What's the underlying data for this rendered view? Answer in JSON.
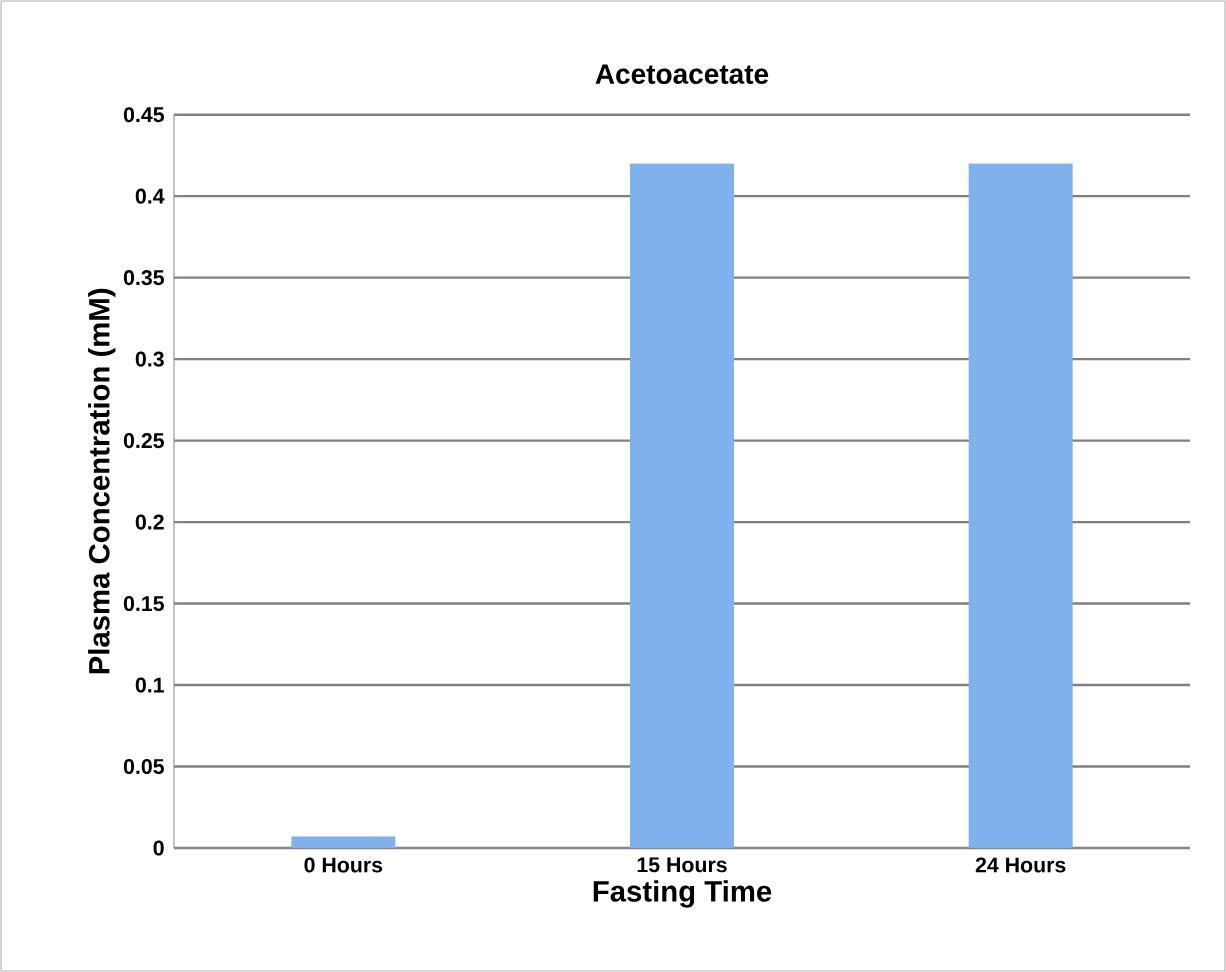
{
  "chart_data": {
    "type": "bar",
    "title": "Acetoacetate",
    "xlabel": "Fasting Time",
    "ylabel": "Plasma Concentration (mM)",
    "categories": [
      "0 Hours",
      "15 Hours",
      "24 Hours"
    ],
    "values": [
      0.007,
      0.42,
      0.42
    ],
    "color": "#7fb2ec",
    "ylim": [
      0,
      0.45
    ],
    "yticks": [
      0,
      0.05,
      0.1,
      0.15,
      0.2,
      0.25,
      0.3,
      0.35,
      0.4,
      0.45
    ],
    "grid": "y"
  }
}
